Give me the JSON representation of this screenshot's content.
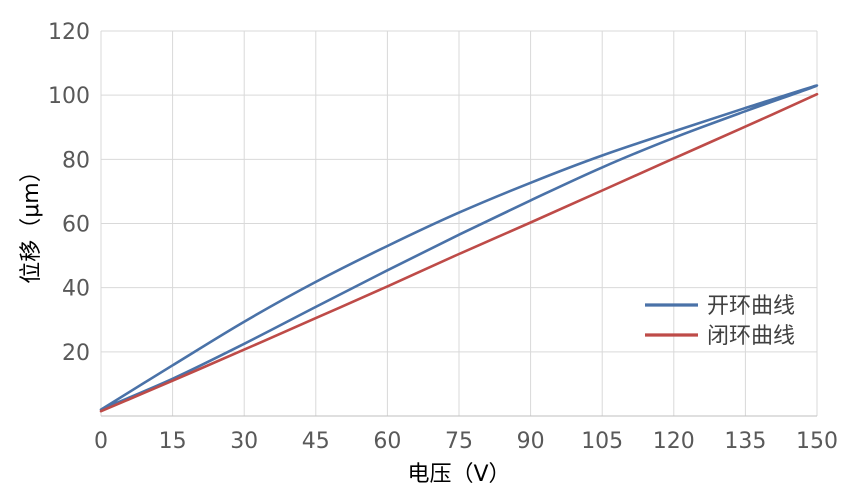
{
  "chart_data": {
    "type": "line",
    "title": "",
    "xlabel": "电压（V）",
    "ylabel": "位移（μm）",
    "xlim": [
      0,
      150
    ],
    "ylim": [
      0,
      120
    ],
    "x_ticks": [
      0,
      15,
      30,
      45,
      60,
      75,
      90,
      105,
      120,
      135,
      150
    ],
    "y_ticks": [
      20,
      40,
      60,
      80,
      100,
      120
    ],
    "grid": true,
    "legend_position": "lower-right",
    "series": [
      {
        "name": "开环曲线",
        "color": "#4a72a8",
        "x": [
          0,
          15,
          30,
          45,
          60,
          75,
          90,
          105,
          120,
          135,
          150,
          135,
          120,
          105,
          90,
          75,
          60,
          45,
          30,
          15,
          0
        ],
        "y": [
          2,
          15.8,
          29.4,
          41.8,
          53,
          63.4,
          72.7,
          81.2,
          88.7,
          96,
          103,
          95,
          86.7,
          77.5,
          67.2,
          56.5,
          45.4,
          34,
          22.5,
          11.6,
          2
        ]
      },
      {
        "name": "闭环曲线",
        "color": "#be4b48",
        "x": [
          0,
          15,
          30,
          45,
          60,
          75,
          90,
          105,
          120,
          135,
          150
        ],
        "y": [
          1.5,
          11,
          20.7,
          30.5,
          40.4,
          50.5,
          60.3,
          70.3,
          80.3,
          90.2,
          100.3
        ]
      }
    ]
  }
}
